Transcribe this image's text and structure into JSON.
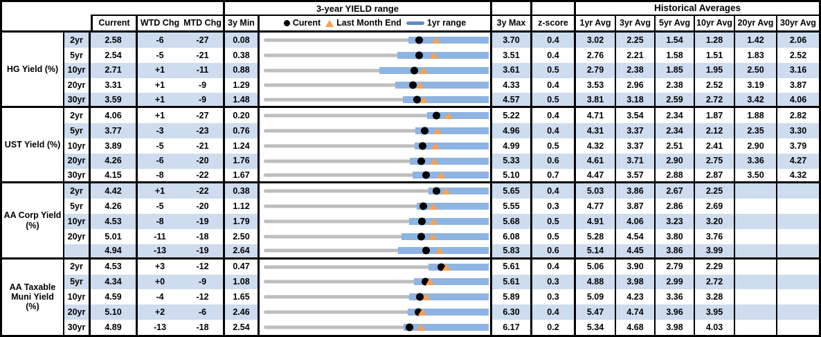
{
  "header": {
    "range_title": "3-year YIELD range",
    "hist_title": "Historical Averages",
    "cols": {
      "current": "Current",
      "wtd": "WTD Chg",
      "mtd": "MTD Chg",
      "min": "3y Min",
      "max": "3y Max",
      "z": "z-score"
    },
    "avg_cols": [
      "1yr Avg",
      "3yr Avg",
      "5yr Avg",
      "10yr Avg",
      "20yr Avg",
      "30yr Avg"
    ],
    "legend": {
      "current": "Curent",
      "last_month_end": "Last Month End",
      "range": "1yr range"
    }
  },
  "colors": {
    "stripe_blue": "#CDDCEE",
    "bar_blue": "#8DB4E2",
    "track_gray": "#BEBEBE",
    "marker_orange": "#F7A152",
    "dot_black": "#000000",
    "legend_dash_blue": "#5B8AC6"
  },
  "chart_data": {
    "type": "table",
    "title": "3-year YIELD range",
    "legend_entries": [
      "Curent",
      "Last Month End",
      "1yr range"
    ],
    "value_unit": "percent yield; WTD/MTD changes in basis points",
    "groups": [
      {
        "label": "HG Yield (%)",
        "rows": [
          {
            "tenor": "2yr",
            "current": "2.58",
            "wtd_chg": "-6",
            "mtd_chg": "-27",
            "min_3y": "0.08",
            "max_3y": "3.70",
            "z_score": "0.4",
            "last_month_end": 2.85,
            "yr1_min": 2.41,
            "yr1_max": 3.7,
            "avgs": [
              "3.02",
              "2.25",
              "1.54",
              "1.28",
              "1.42",
              "2.06"
            ]
          },
          {
            "tenor": "5yr",
            "current": "2.54",
            "wtd_chg": "-5",
            "mtd_chg": "-21",
            "min_3y": "0.38",
            "max_3y": "3.51",
            "z_score": "0.4",
            "last_month_end": 2.75,
            "yr1_min": 2.24,
            "yr1_max": 3.51,
            "avgs": [
              "2.76",
              "2.21",
              "1.58",
              "1.51",
              "1.83",
              "2.52"
            ]
          },
          {
            "tenor": "10yr",
            "current": "2.71",
            "wtd_chg": "+1",
            "mtd_chg": "-11",
            "min_3y": "0.88",
            "max_3y": "3.61",
            "z_score": "0.5",
            "last_month_end": 2.82,
            "yr1_min": 2.28,
            "yr1_max": 3.61,
            "avgs": [
              "2.79",
              "2.38",
              "1.85",
              "1.95",
              "2.50",
              "3.16"
            ]
          },
          {
            "tenor": "20yr",
            "current": "3.31",
            "wtd_chg": "+1",
            "mtd_chg": "-9",
            "min_3y": "1.29",
            "max_3y": "4.33",
            "z_score": "0.4",
            "last_month_end": 3.4,
            "yr1_min": 3.07,
            "yr1_max": 4.33,
            "avgs": [
              "3.53",
              "2.96",
              "2.38",
              "2.52",
              "3.19",
              "3.87"
            ]
          },
          {
            "tenor": "30yr",
            "current": "3.59",
            "wtd_chg": "+1",
            "mtd_chg": "-9",
            "min_3y": "1.48",
            "max_3y": "4.57",
            "z_score": "0.5",
            "last_month_end": 3.68,
            "yr1_min": 3.39,
            "yr1_max": 4.57,
            "avgs": [
              "3.81",
              "3.18",
              "2.59",
              "2.72",
              "3.42",
              "4.06"
            ]
          }
        ]
      },
      {
        "label": "UST Yield (%)",
        "rows": [
          {
            "tenor": "2yr",
            "current": "4.06",
            "wtd_chg": "+1",
            "mtd_chg": "-27",
            "min_3y": "0.20",
            "max_3y": "5.22",
            "z_score": "0.4",
            "last_month_end": 4.33,
            "yr1_min": 3.85,
            "yr1_max": 5.22,
            "avgs": [
              "4.71",
              "3.54",
              "2.34",
              "1.87",
              "1.88",
              "2.82"
            ]
          },
          {
            "tenor": "5yr",
            "current": "3.77",
            "wtd_chg": "-3",
            "mtd_chg": "-23",
            "min_3y": "0.76",
            "max_3y": "4.96",
            "z_score": "0.4",
            "last_month_end": 4.0,
            "yr1_min": 3.59,
            "yr1_max": 4.96,
            "avgs": [
              "4.31",
              "3.37",
              "2.34",
              "2.12",
              "2.35",
              "3.30"
            ]
          },
          {
            "tenor": "10yr",
            "current": "3.89",
            "wtd_chg": "-5",
            "mtd_chg": "-21",
            "min_3y": "1.24",
            "max_3y": "4.99",
            "z_score": "0.5",
            "last_month_end": 4.1,
            "yr1_min": 3.76,
            "yr1_max": 4.99,
            "avgs": [
              "4.32",
              "3.37",
              "2.51",
              "2.41",
              "2.90",
              "3.79"
            ]
          },
          {
            "tenor": "20yr",
            "current": "4.26",
            "wtd_chg": "-6",
            "mtd_chg": "-20",
            "min_3y": "1.76",
            "max_3y": "5.33",
            "z_score": "0.6",
            "last_month_end": 4.46,
            "yr1_min": 4.08,
            "yr1_max": 5.33,
            "avgs": [
              "4.61",
              "3.71",
              "2.90",
              "2.75",
              "3.36",
              "4.27"
            ]
          },
          {
            "tenor": "30yr",
            "current": "4.15",
            "wtd_chg": "-8",
            "mtd_chg": "-22",
            "min_3y": "1.67",
            "max_3y": "5.10",
            "z_score": "0.7",
            "last_month_end": 4.37,
            "yr1_min": 3.94,
            "yr1_max": 5.1,
            "avgs": [
              "4.47",
              "3.57",
              "2.88",
              "2.87",
              "3.50",
              "4.32"
            ]
          }
        ]
      },
      {
        "label": "AA Corp Yield (%)",
        "rows": [
          {
            "tenor": "2yr",
            "current": "4.42",
            "wtd_chg": "+1",
            "mtd_chg": "-22",
            "min_3y": "0.38",
            "max_3y": "5.65",
            "z_score": "0.4",
            "last_month_end": 4.64,
            "yr1_min": 4.24,
            "yr1_max": 5.65,
            "avgs": [
              "5.03",
              "3.86",
              "2.67",
              "2.25",
              "",
              ""
            ]
          },
          {
            "tenor": "5yr",
            "current": "4.26",
            "wtd_chg": "-5",
            "mtd_chg": "-20",
            "min_3y": "1.12",
            "max_3y": "5.55",
            "z_score": "0.3",
            "last_month_end": 4.46,
            "yr1_min": 4.13,
            "yr1_max": 5.55,
            "avgs": [
              "4.77",
              "3.87",
              "2.86",
              "2.69",
              "",
              ""
            ]
          },
          {
            "tenor": "10yr",
            "current": "4.53",
            "wtd_chg": "-8",
            "mtd_chg": "-19",
            "min_3y": "1.79",
            "max_3y": "5.68",
            "z_score": "0.5",
            "last_month_end": 4.72,
            "yr1_min": 4.3,
            "yr1_max": 5.68,
            "avgs": [
              "4.91",
              "4.06",
              "3.23",
              "3.20",
              "",
              ""
            ]
          },
          {
            "tenor": "20yr",
            "current": "5.01",
            "wtd_chg": "-11",
            "mtd_chg": "-18",
            "min_3y": "2.50",
            "max_3y": "6.08",
            "z_score": "0.5",
            "last_month_end": 5.19,
            "yr1_min": 4.69,
            "yr1_max": 6.08,
            "avgs": [
              "5.28",
              "4.54",
              "3.80",
              "3.76",
              "",
              ""
            ]
          },
          {
            "tenor": "",
            "current": "4.94",
            "wtd_chg": "-13",
            "mtd_chg": "-19",
            "min_3y": "2.64",
            "max_3y": "5.83",
            "z_score": "0.6",
            "last_month_end": 5.13,
            "yr1_min": 4.54,
            "yr1_max": 5.83,
            "avgs": [
              "5.14",
              "4.45",
              "3.86",
              "3.99",
              "",
              ""
            ]
          }
        ]
      },
      {
        "label": "AA Taxable Muni Yield (%)",
        "rows": [
          {
            "tenor": "2yr",
            "current": "4.53",
            "wtd_chg": "+3",
            "mtd_chg": "-12",
            "min_3y": "0.47",
            "max_3y": "5.61",
            "z_score": "0.4",
            "last_month_end": 4.65,
            "yr1_min": 4.23,
            "yr1_max": 5.61,
            "avgs": [
              "5.06",
              "3.90",
              "2.79",
              "2.29",
              "",
              ""
            ]
          },
          {
            "tenor": "5yr",
            "current": "4.34",
            "wtd_chg": "+0",
            "mtd_chg": "-9",
            "min_3y": "1.08",
            "max_3y": "5.61",
            "z_score": "0.3",
            "last_month_end": 4.43,
            "yr1_min": 4.1,
            "yr1_max": 5.61,
            "avgs": [
              "4.88",
              "3.98",
              "2.99",
              "2.72",
              "",
              ""
            ]
          },
          {
            "tenor": "10yr",
            "current": "4.59",
            "wtd_chg": "-4",
            "mtd_chg": "-12",
            "min_3y": "1.65",
            "max_3y": "5.89",
            "z_score": "0.3",
            "last_month_end": 4.71,
            "yr1_min": 4.39,
            "yr1_max": 5.89,
            "avgs": [
              "5.09",
              "4.23",
              "3.36",
              "3.28",
              "",
              ""
            ]
          },
          {
            "tenor": "20yr",
            "current": "5.10",
            "wtd_chg": "+2",
            "mtd_chg": "-6",
            "min_3y": "2.46",
            "max_3y": "6.30",
            "z_score": "0.4",
            "last_month_end": 5.16,
            "yr1_min": 4.92,
            "yr1_max": 6.3,
            "avgs": [
              "5.47",
              "4.74",
              "3.96",
              "3.95",
              "",
              ""
            ]
          },
          {
            "tenor": "30yr",
            "current": "4.89",
            "wtd_chg": "-13",
            "mtd_chg": "-18",
            "min_3y": "2.54",
            "max_3y": "6.17",
            "z_score": "0.2",
            "last_month_end": 5.07,
            "yr1_min": 4.8,
            "yr1_max": 6.17,
            "avgs": [
              "5.34",
              "4.68",
              "3.98",
              "4.03",
              "",
              ""
            ]
          }
        ]
      }
    ]
  }
}
